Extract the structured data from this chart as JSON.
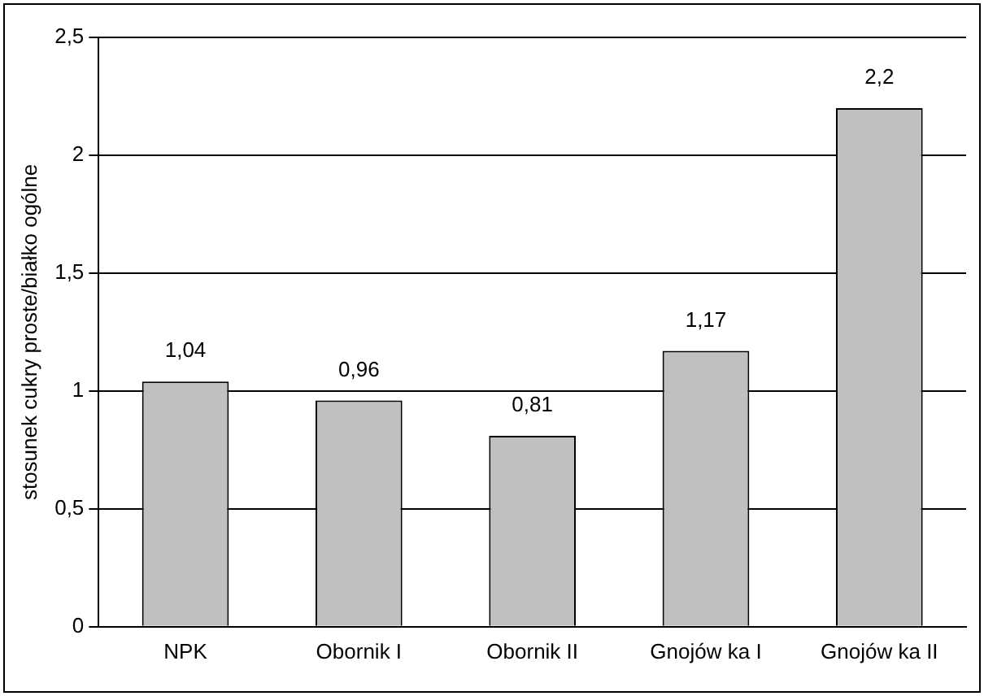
{
  "chart_data": {
    "type": "bar",
    "ylabel": "stosunek cukry proste/białko ogólne",
    "categories": [
      "NPK",
      "Obornik I",
      "Obornik II",
      "Gnojów ka I",
      "Gnojów ka II"
    ],
    "values": [
      1.04,
      0.96,
      0.81,
      1.17,
      2.2
    ],
    "value_labels": [
      "1,04",
      "0,96",
      "0,81",
      "1,17",
      "2,2"
    ],
    "color": "#c0c0c0",
    "ylim": [
      0,
      2.5
    ],
    "yticks": [
      0,
      {
        "value": 0.5,
        "label": "0,5"
      },
      1,
      {
        "value": 1.5,
        "label": "1,5"
      },
      2,
      {
        "value": 2.5,
        "label": "2,5"
      }
    ],
    "grid": "y",
    "legend": false
  }
}
